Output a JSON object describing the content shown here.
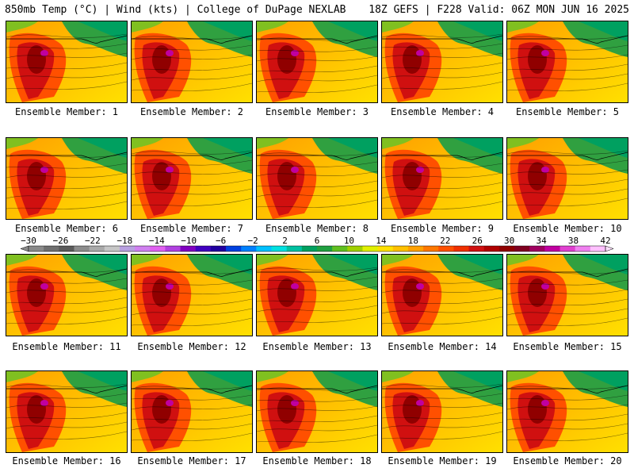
{
  "header": {
    "left_title": "850mb Temp (°C) | Wind (kts) | College of DuPage NEXLAB",
    "right_title": "18Z GEFS | F228 Valid: 06Z MON JUN 16 2025"
  },
  "panels": [
    {
      "label": "Ensemble Member: 1"
    },
    {
      "label": "Ensemble Member: 2"
    },
    {
      "label": "Ensemble Member: 3"
    },
    {
      "label": "Ensemble Member: 4"
    },
    {
      "label": "Ensemble Member: 5"
    },
    {
      "label": "Ensemble Member: 6"
    },
    {
      "label": "Ensemble Member: 7"
    },
    {
      "label": "Ensemble Member: 8"
    },
    {
      "label": "Ensemble Member: 9"
    },
    {
      "label": "Ensemble Member: 10"
    },
    {
      "label": "Ensemble Member: 11"
    },
    {
      "label": "Ensemble Member: 12"
    },
    {
      "label": "Ensemble Member: 13"
    },
    {
      "label": "Ensemble Member: 14"
    },
    {
      "label": "Ensemble Member: 15"
    },
    {
      "label": "Ensemble Member: 16"
    },
    {
      "label": "Ensemble Member: 17"
    },
    {
      "label": "Ensemble Member: 18"
    },
    {
      "label": "Ensemble Member: 19"
    },
    {
      "label": "Ensemble Member: 20"
    }
  ],
  "colorbar": {
    "tick_labels": [
      "−30",
      "−26",
      "−22",
      "−18",
      "−14",
      "−10",
      "−6",
      "−2",
      "2",
      "6",
      "10",
      "14",
      "18",
      "22",
      "26",
      "30",
      "34",
      "38",
      "42"
    ],
    "colors": [
      "#8a8a8a",
      "#6f6f6f",
      "#5a5a5a",
      "#8c8c8c",
      "#a9a9a9",
      "#c6c6c6",
      "#b8a0e0",
      "#d080f0",
      "#e060f0",
      "#b040e0",
      "#8000c0",
      "#4000c0",
      "#2000a0",
      "#0040e0",
      "#0080ff",
      "#00c0ff",
      "#00e0e0",
      "#00c0a0",
      "#00a060",
      "#20a040",
      "#60c020",
      "#a0d000",
      "#e0f000",
      "#ffe000",
      "#ffc000",
      "#ffa000",
      "#ff7800",
      "#ff5000",
      "#f03000",
      "#d01010",
      "#b00000",
      "#900000",
      "#800020",
      "#a00060",
      "#c000a0",
      "#e040d0",
      "#f080f0",
      "#ffc0ff"
    ]
  }
}
